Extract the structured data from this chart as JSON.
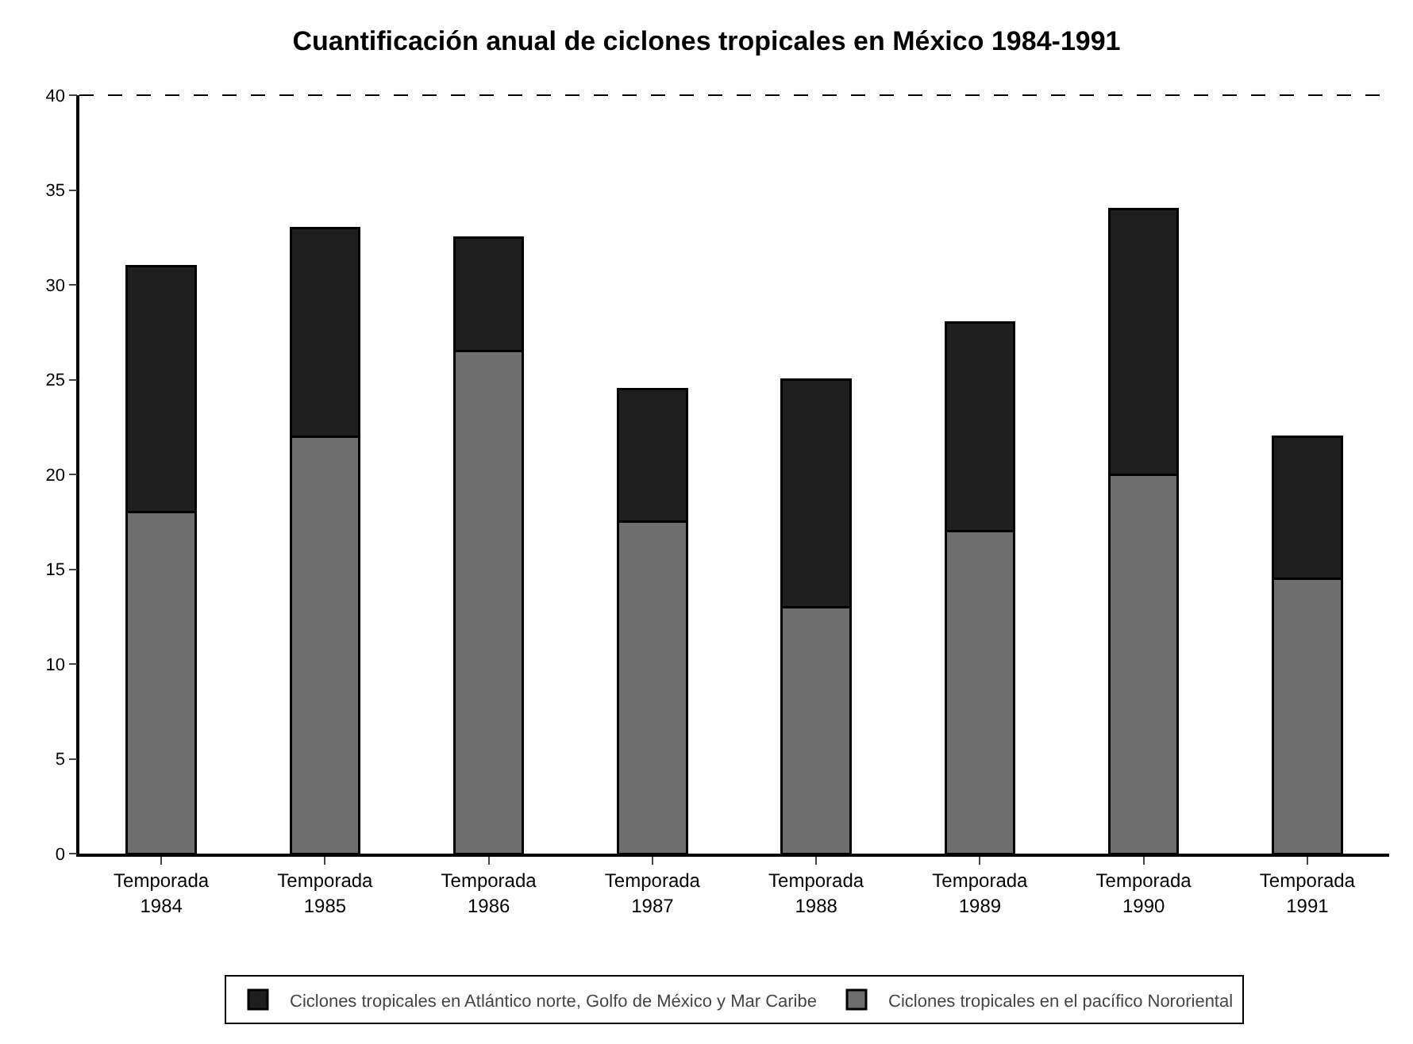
{
  "chart_data": {
    "type": "bar",
    "title": "Cuantificación anual de ciclones tropicales en México 1984-1991",
    "categories": [
      "Temporada 1984",
      "Temporada 1985",
      "Temporada 1986",
      "Temporada 1987",
      "Temporada 1988",
      "Temporada 1989",
      "Temporada 1990",
      "Temporada 1991"
    ],
    "stacked": true,
    "series": [
      {
        "name": "Ciclones tropicales en el pacífico Nororiental",
        "color": "#6e6e6e",
        "values": [
          18,
          22,
          26.5,
          17.5,
          13,
          17,
          20,
          14.5
        ]
      },
      {
        "name": "Ciclones tropicales en Atlántico norte, Golfo de México y Mar Caribe",
        "color": "#1e1e1e",
        "values": [
          13,
          11,
          6,
          7,
          12,
          11,
          14,
          7.5
        ]
      }
    ],
    "ylim": [
      0,
      40
    ],
    "yticks": [
      0,
      5,
      10,
      15,
      20,
      25,
      30,
      35,
      40
    ],
    "grid": false,
    "legend": "bottom"
  }
}
